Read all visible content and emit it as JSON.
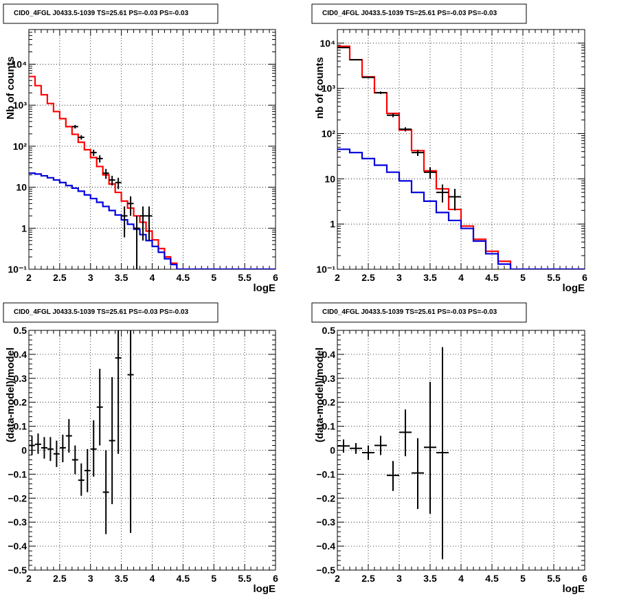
{
  "chart_data": [
    {
      "type": "histogram",
      "title": "CID0_4FGL J0433.5-1039 TS=25.61 PS=-0.03 PS=-0.03",
      "xlabel": "logE",
      "ylabel": "Nb of counts",
      "xlim": [
        2,
        6
      ],
      "ylim": [
        0.1,
        70000
      ],
      "yscale": "log",
      "grid": true,
      "x_ticks": [
        "2",
        "2.5",
        "3",
        "3.5",
        "4",
        "4.5",
        "5",
        "5.5",
        "6"
      ],
      "y_ticks": [
        {
          "v": 0.1,
          "t": "10⁻¹"
        },
        {
          "v": 1,
          "t": "1"
        },
        {
          "v": 10,
          "t": "10"
        },
        {
          "v": 100,
          "t": "10²"
        },
        {
          "v": 1000,
          "t": "10³"
        },
        {
          "v": 10000,
          "t": "10⁴"
        }
      ],
      "bin_edges": [
        2.0,
        2.1,
        2.2,
        2.3,
        2.4,
        2.5,
        2.6,
        2.7,
        2.8,
        2.9,
        3.0,
        3.1,
        3.2,
        3.3,
        3.4,
        3.5,
        3.6,
        3.7,
        3.8,
        3.9,
        4.0,
        4.1,
        4.2,
        4.3,
        4.4,
        4.5,
        4.6,
        4.7,
        4.8,
        4.9,
        5.0,
        5.1,
        5.2,
        5.3,
        5.4,
        5.5,
        5.6,
        5.7,
        5.8,
        5.9,
        6.0
      ],
      "series": [
        {
          "color": "#ff0000",
          "values": [
            5000,
            3000,
            1800,
            1100,
            700,
            470,
            300,
            195,
            125,
            82,
            53,
            32,
            20,
            12,
            7.5,
            4.6,
            3.1,
            2.0,
            1.4,
            0.85,
            0.52,
            0.32,
            0.2,
            0.14,
            0.1,
            0.1,
            0.1,
            0.1,
            0.1,
            0.1,
            0.1,
            0.1,
            0.1,
            0.1,
            0.1,
            0.1,
            0.1,
            0.1,
            0.1,
            0.1
          ]
        },
        {
          "color": "#0000dd",
          "values": [
            22,
            21,
            19,
            17,
            15,
            13,
            11,
            9.5,
            8,
            6.5,
            5.3,
            4.3,
            3.4,
            2.7,
            2.1,
            1.6,
            1.25,
            0.95,
            0.7,
            0.5,
            0.36,
            0.26,
            0.18,
            0.13,
            0.1,
            0.1,
            0.1,
            0.1,
            0.1,
            0.1,
            0.1,
            0.1,
            0.1,
            0.1,
            0.1,
            0.1,
            0.1,
            0.1,
            0.1,
            0.1
          ]
        }
      ],
      "data_points": [
        {
          "x": 2.75,
          "y": 300,
          "lo": 270,
          "hi": 330
        },
        {
          "x": 2.85,
          "y": 165,
          "lo": 145,
          "hi": 185
        },
        {
          "x": 3.05,
          "y": 70,
          "lo": 58,
          "hi": 82
        },
        {
          "x": 3.15,
          "y": 50,
          "lo": 40,
          "hi": 60
        },
        {
          "x": 3.25,
          "y": 22,
          "lo": 16,
          "hi": 28
        },
        {
          "x": 3.35,
          "y": 15,
          "lo": 11,
          "hi": 19
        },
        {
          "x": 3.45,
          "y": 13,
          "lo": 9,
          "hi": 17
        },
        {
          "x": 3.55,
          "y": 2,
          "lo": 0.6,
          "hi": 3.4
        },
        {
          "x": 3.65,
          "y": 4,
          "lo": 2,
          "hi": 6
        },
        {
          "x": 3.75,
          "y": 1,
          "lo": 0.1,
          "hi": 2
        },
        {
          "x": 3.85,
          "y": 2,
          "lo": 0.5,
          "hi": 3.4
        },
        {
          "x": 3.95,
          "y": 2,
          "lo": 0.5,
          "hi": 3.4
        }
      ]
    },
    {
      "type": "histogram",
      "title": "CID0_4FGL J0433.5-1039 TS=25.61 PS=-0.03 PS=-0.03",
      "xlabel": "logE",
      "ylabel": "nb of counts",
      "xlim": [
        2,
        6
      ],
      "ylim": [
        0.1,
        20000
      ],
      "yscale": "log",
      "grid": true,
      "x_ticks": [
        "2",
        "2.5",
        "3",
        "3.5",
        "4",
        "4.5",
        "5",
        "5.5",
        "6"
      ],
      "y_ticks": [
        {
          "v": 0.1,
          "t": "10⁻¹"
        },
        {
          "v": 1,
          "t": "1"
        },
        {
          "v": 10,
          "t": "10"
        },
        {
          "v": 100,
          "t": "10²"
        },
        {
          "v": 1000,
          "t": "10³"
        },
        {
          "v": 10000,
          "t": "10⁴"
        }
      ],
      "bin_edges": [
        2.0,
        2.2,
        2.4,
        2.6,
        2.8,
        3.0,
        3.2,
        3.4,
        3.6,
        3.8,
        4.0,
        4.2,
        4.4,
        4.6,
        4.8,
        5.0,
        5.2,
        5.4,
        5.6,
        5.8,
        6.0
      ],
      "series": [
        {
          "color": "#ff0000",
          "values": [
            8500,
            4300,
            1800,
            800,
            280,
            120,
            42,
            15,
            6,
            2.1,
            0.9,
            0.46,
            0.25,
            0.15,
            0.1,
            0.1,
            0.1,
            0.1,
            0.1,
            0.1
          ]
        },
        {
          "color": "#0000dd",
          "values": [
            45,
            38,
            28,
            20,
            14,
            9,
            5,
            3.2,
            1.8,
            1.2,
            0.8,
            0.42,
            0.22,
            0.13,
            0.1,
            0.1,
            0.1,
            0.1,
            0.1,
            0.1
          ]
        }
      ],
      "data_points": [
        {
          "x": 2.1,
          "y": 8000,
          "lo": 7820,
          "hi": 8180
        },
        {
          "x": 2.3,
          "y": 4300,
          "lo": 4170,
          "hi": 4430
        },
        {
          "x": 2.5,
          "y": 1750,
          "lo": 1670,
          "hi": 1830
        },
        {
          "x": 2.7,
          "y": 800,
          "lo": 750,
          "hi": 850
        },
        {
          "x": 2.9,
          "y": 255,
          "lo": 230,
          "hi": 280
        },
        {
          "x": 3.1,
          "y": 125,
          "lo": 112,
          "hi": 138
        },
        {
          "x": 3.3,
          "y": 38,
          "lo": 32,
          "hi": 44
        },
        {
          "x": 3.5,
          "y": 14,
          "lo": 10,
          "hi": 18
        },
        {
          "x": 3.7,
          "y": 5,
          "lo": 3,
          "hi": 7.5
        },
        {
          "x": 3.9,
          "y": 4,
          "lo": 2,
          "hi": 6
        }
      ]
    },
    {
      "type": "scatter",
      "title": "CID0_4FGL J0433.5-1039 TS=25.61 PS=-0.03 PS=-0.03",
      "xlabel": "logE",
      "ylabel": "(data-model)/model",
      "xlim": [
        2,
        6
      ],
      "ylim": [
        -0.5,
        0.5
      ],
      "yscale": "linear",
      "grid": true,
      "x_ticks": [
        "2",
        "2.5",
        "3",
        "3.5",
        "4",
        "4.5",
        "5",
        "5.5",
        "6"
      ],
      "y_ticks": [
        {
          "v": -0.5,
          "t": "−0.5"
        },
        {
          "v": -0.4,
          "t": "−0.4"
        },
        {
          "v": -0.3,
          "t": "−0.3"
        },
        {
          "v": -0.2,
          "t": "−0.2"
        },
        {
          "v": -0.1,
          "t": "−0.1"
        },
        {
          "v": 0,
          "t": "0"
        },
        {
          "v": 0.1,
          "t": "0.1"
        },
        {
          "v": 0.2,
          "t": "0.2"
        },
        {
          "v": 0.3,
          "t": "0.3"
        },
        {
          "v": 0.4,
          "t": "0.4"
        },
        {
          "v": 0.5,
          "t": "0.5"
        }
      ],
      "data_points": [
        {
          "x": 2.05,
          "y": 0.02,
          "lo": -0.02,
          "hi": 0.06,
          "xw": 0.05
        },
        {
          "x": 2.15,
          "y": 0.025,
          "lo": -0.015,
          "hi": 0.07,
          "xw": 0.05
        },
        {
          "x": 2.25,
          "y": 0.01,
          "lo": -0.035,
          "hi": 0.055,
          "xw": 0.05
        },
        {
          "x": 2.35,
          "y": 0.005,
          "lo": -0.045,
          "hi": 0.055,
          "xw": 0.05
        },
        {
          "x": 2.45,
          "y": -0.015,
          "lo": -0.07,
          "hi": 0.04,
          "xw": 0.05
        },
        {
          "x": 2.55,
          "y": 0.01,
          "lo": -0.05,
          "hi": 0.065,
          "xw": 0.05
        },
        {
          "x": 2.65,
          "y": 0.06,
          "lo": -0.01,
          "hi": 0.13,
          "xw": 0.05
        },
        {
          "x": 2.75,
          "y": -0.04,
          "lo": -0.1,
          "hi": 0.02,
          "xw": 0.05
        },
        {
          "x": 2.85,
          "y": -0.125,
          "lo": -0.19,
          "hi": -0.055,
          "xw": 0.05
        },
        {
          "x": 2.95,
          "y": -0.085,
          "lo": -0.175,
          "hi": 0.005,
          "xw": 0.05
        },
        {
          "x": 3.05,
          "y": 0.005,
          "lo": -0.11,
          "hi": 0.125,
          "xw": 0.05
        },
        {
          "x": 3.15,
          "y": 0.18,
          "lo": 0.02,
          "hi": 0.34,
          "xw": 0.05
        },
        {
          "x": 3.25,
          "y": -0.175,
          "lo": -0.35,
          "hi": 0.0,
          "xw": 0.05
        },
        {
          "x": 3.35,
          "y": 0.04,
          "lo": -0.225,
          "hi": 0.305,
          "xw": 0.05
        },
        {
          "x": 3.45,
          "y": 0.385,
          "lo": -0.015,
          "hi": 0.5,
          "xw": 0.05
        },
        {
          "x": 3.65,
          "y": 0.315,
          "lo": -0.345,
          "hi": 0.5,
          "xw": 0.05
        }
      ]
    },
    {
      "type": "scatter",
      "title": "CID0_4FGL J0433.5-1039 TS=25.61 PS=-0.03 PS=-0.03",
      "xlabel": "logE",
      "ylabel": "(data-model)/model",
      "xlim": [
        2,
        6
      ],
      "ylim": [
        -0.5,
        0.5
      ],
      "yscale": "linear",
      "grid": true,
      "x_ticks": [
        "2",
        "2.5",
        "3",
        "3.5",
        "4",
        "4.5",
        "5",
        "5.5",
        "6"
      ],
      "y_ticks": [
        {
          "v": -0.5,
          "t": "−0.5"
        },
        {
          "v": -0.4,
          "t": "−0.4"
        },
        {
          "v": -0.3,
          "t": "−0.3"
        },
        {
          "v": -0.2,
          "t": "−0.2"
        },
        {
          "v": -0.1,
          "t": "−0.1"
        },
        {
          "v": 0,
          "t": "0"
        },
        {
          "v": 0.1,
          "t": "0.1"
        },
        {
          "v": 0.2,
          "t": "0.2"
        },
        {
          "v": 0.3,
          "t": "0.3"
        },
        {
          "v": 0.4,
          "t": "0.4"
        },
        {
          "v": 0.5,
          "t": "0.5"
        }
      ],
      "data_points": [
        {
          "x": 2.1,
          "y": 0.018,
          "lo": -0.01,
          "hi": 0.045,
          "xw": 0.1
        },
        {
          "x": 2.3,
          "y": 0.008,
          "lo": -0.015,
          "hi": 0.03,
          "xw": 0.1
        },
        {
          "x": 2.5,
          "y": -0.01,
          "lo": -0.04,
          "hi": 0.02,
          "xw": 0.1
        },
        {
          "x": 2.7,
          "y": 0.02,
          "lo": -0.02,
          "hi": 0.06,
          "xw": 0.1
        },
        {
          "x": 2.9,
          "y": -0.105,
          "lo": -0.17,
          "hi": -0.045,
          "xw": 0.1
        },
        {
          "x": 3.1,
          "y": 0.075,
          "lo": -0.025,
          "hi": 0.17,
          "xw": 0.1
        },
        {
          "x": 3.3,
          "y": -0.095,
          "lo": -0.245,
          "hi": 0.05,
          "xw": 0.1
        },
        {
          "x": 3.5,
          "y": 0.012,
          "lo": -0.265,
          "hi": 0.285,
          "xw": 0.1
        },
        {
          "x": 3.7,
          "y": -0.01,
          "lo": -0.455,
          "hi": 0.43,
          "xw": 0.1
        }
      ]
    }
  ]
}
